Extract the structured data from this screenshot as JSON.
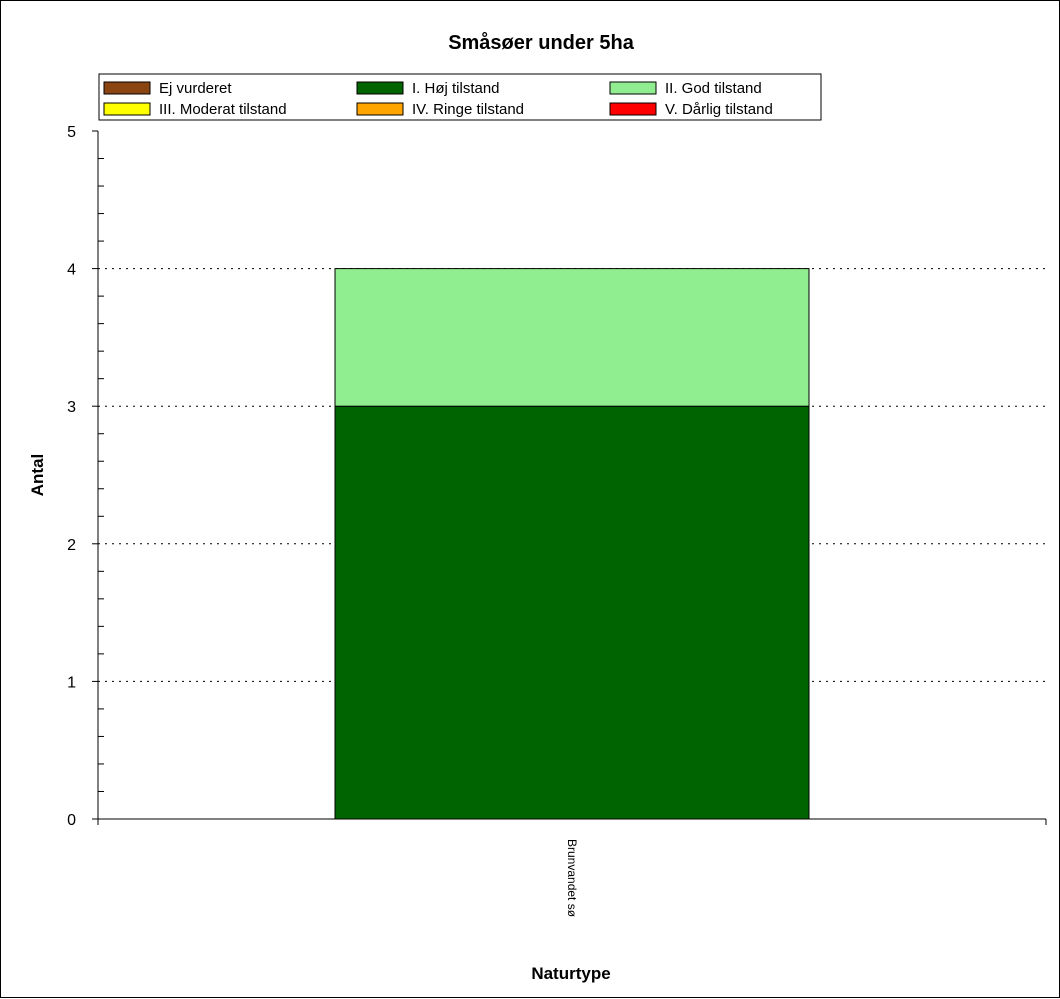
{
  "chart_data": {
    "type": "bar",
    "stacked": true,
    "title": "Småsøer under 5ha",
    "xlabel": "Naturtype",
    "ylabel": "Antal",
    "ylim": [
      0,
      5
    ],
    "yticks": [
      "0",
      "1",
      "2",
      "3",
      "4",
      "5"
    ],
    "grid": "horizontal-dotted",
    "legend_position": "top",
    "categories": [
      "Brunvandet sø"
    ],
    "series": [
      {
        "name": "Ej vurderet",
        "color": "#8B4513",
        "values": [
          0
        ]
      },
      {
        "name": "I. Høj tilstand",
        "color": "#006400",
        "values": [
          3
        ]
      },
      {
        "name": "II. God tilstand",
        "color": "#90EE90",
        "values": [
          1
        ]
      },
      {
        "name": "III. Moderat tilstand",
        "color": "#FFFF00",
        "values": [
          0
        ]
      },
      {
        "name": "IV. Ringe tilstand",
        "color": "#FFA500",
        "values": [
          0
        ]
      },
      {
        "name": "V. Dårlig tilstand",
        "color": "#FF0000",
        "values": [
          0
        ]
      }
    ]
  }
}
